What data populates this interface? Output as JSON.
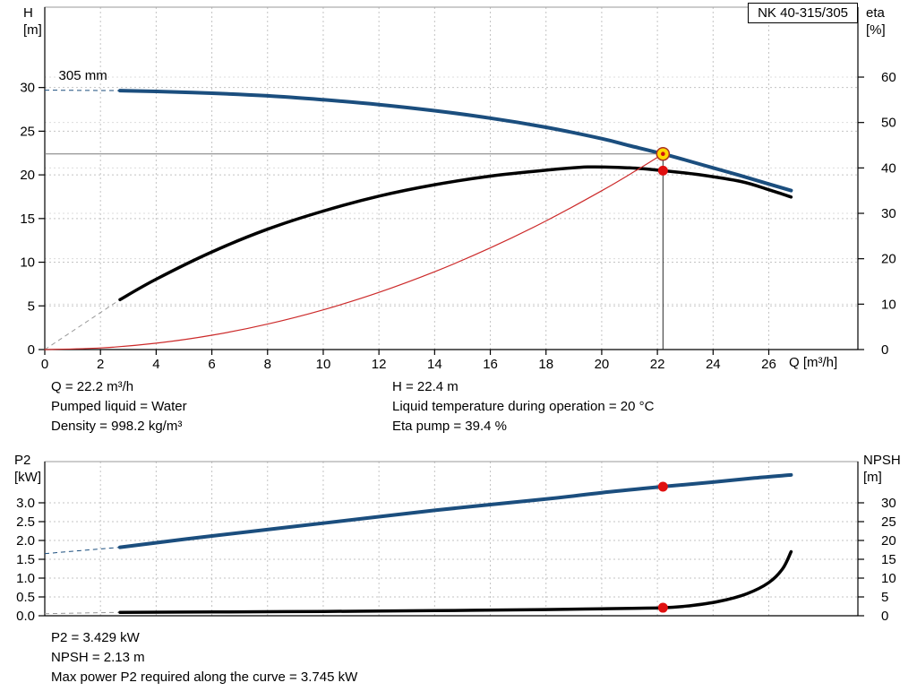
{
  "pump_model": "NK 40-315/305",
  "info_top": {
    "left": [
      "Q = 22.2 m³/h",
      "Pumped liquid = Water",
      "Density = 998.2 kg/m³"
    ],
    "right": [
      "H = 22.4 m",
      "Liquid temperature during operation = 20 °C",
      "Eta pump = 39.4 %"
    ]
  },
  "info_bottom": [
    "P2 = 3.429 kW",
    "NPSH = 2.13 m",
    "Max power P2 required along the curve = 3.745 kW"
  ],
  "chart_data": [
    {
      "type": "line",
      "title": "QH and efficiency curves",
      "xlabel": "Q [m³/h]",
      "yl_title": [
        "H",
        "[m]"
      ],
      "yr_title": [
        "eta",
        "[%]"
      ],
      "xlim": [
        0,
        29.2
      ],
      "ylim_left": [
        0,
        39.2
      ],
      "ylim_right": [
        0,
        75.4
      ],
      "xticks": [
        0,
        2,
        4,
        6,
        8,
        10,
        12,
        14,
        16,
        18,
        20,
        22,
        24,
        26
      ],
      "yticks_left": [
        0,
        5,
        10,
        15,
        20,
        25,
        30
      ],
      "yticks_right": [
        0,
        10,
        20,
        30,
        40,
        50,
        60
      ],
      "grid_right": true,
      "show_xtick_labels": true,
      "series": [
        {
          "name": "head-curve-305mm",
          "axis": "left",
          "color": "#1b4e7e",
          "width": 4,
          "lead_color": "#1b4e7e",
          "dash_lead": [
            [
              0,
              29.7
            ],
            [
              2.7,
              29.65
            ]
          ],
          "points": [
            [
              2.7,
              29.65
            ],
            [
              4,
              29.55
            ],
            [
              6,
              29.35
            ],
            [
              8,
              29.05
            ],
            [
              10,
              28.6
            ],
            [
              12,
              28.05
            ],
            [
              14,
              27.35
            ],
            [
              16,
              26.5
            ],
            [
              18,
              25.45
            ],
            [
              20,
              24.15
            ],
            [
              21,
              23.35
            ],
            [
              22.2,
              22.4
            ],
            [
              23,
              21.7
            ],
            [
              24,
              20.8
            ],
            [
              25,
              19.9
            ],
            [
              26,
              18.95
            ],
            [
              26.8,
              18.2
            ]
          ]
        },
        {
          "name": "efficiency-curve",
          "axis": "right",
          "color": "#000000",
          "width": 3.5,
          "lead_color": "#999999",
          "dash_lead": [
            [
              0,
              0
            ],
            [
              2.7,
              11
            ]
          ],
          "points": [
            [
              2.7,
              11
            ],
            [
              4,
              15.5
            ],
            [
              6,
              21.5
            ],
            [
              8,
              26.5
            ],
            [
              10,
              30.5
            ],
            [
              12,
              33.8
            ],
            [
              14,
              36.3
            ],
            [
              16,
              38.2
            ],
            [
              18,
              39.5
            ],
            [
              19.5,
              40.2
            ],
            [
              21,
              40
            ],
            [
              22.2,
              39.4
            ],
            [
              23.5,
              38.5
            ],
            [
              25,
              37
            ],
            [
              26,
              35.2
            ],
            [
              26.8,
              33.6
            ]
          ]
        },
        {
          "name": "system-curve",
          "axis": "left",
          "color": "#cc2a2a",
          "width": 1.2,
          "points": [
            [
              0,
              0
            ],
            [
              2,
              0.18
            ],
            [
              4,
              0.73
            ],
            [
              6,
              1.64
            ],
            [
              8,
              2.91
            ],
            [
              10,
              4.55
            ],
            [
              12,
              6.55
            ],
            [
              14,
              8.91
            ],
            [
              16,
              11.64
            ],
            [
              18,
              14.73
            ],
            [
              20,
              18.18
            ],
            [
              21.2,
              20.43
            ],
            [
              22.2,
              22.4
            ]
          ]
        }
      ],
      "guides": {
        "v": 22.2,
        "h": 22.4
      },
      "markers": [
        {
          "name": "duty-point-marker",
          "x": 22.2,
          "y": 22.4,
          "axis": "left",
          "style": "duty"
        },
        {
          "name": "eta-duty-marker",
          "x": 22.2,
          "y": 39.4,
          "axis": "right",
          "style": "dot"
        }
      ],
      "annotations": [
        {
          "text": "305 mm",
          "x": 0.5,
          "y": 30.9
        }
      ],
      "duty_point": {
        "Q": 22.2,
        "H": 22.4,
        "eta": 39.4
      }
    },
    {
      "type": "line",
      "title": "P2 and NPSH curves",
      "xlabel": "",
      "yl_title": [
        "P2",
        "[kW]"
      ],
      "yr_title": [
        "NPSH",
        "[m]"
      ],
      "xlim": [
        0,
        29.2
      ],
      "ylim_left": [
        0,
        4.095
      ],
      "ylim_right": [
        0,
        40.95
      ],
      "xticks": [
        0,
        2,
        4,
        6,
        8,
        10,
        12,
        14,
        16,
        18,
        20,
        22,
        24,
        26
      ],
      "yticks_left": [
        0,
        0.5,
        1,
        1.5,
        2,
        2.5,
        3
      ],
      "ytick_labels_left": [
        "0.0",
        "0.5",
        "1.0",
        "1.5",
        "2.0",
        "2.5",
        "3.0"
      ],
      "yticks_right": [
        0,
        5,
        10,
        15,
        20,
        25,
        30
      ],
      "grid_right": false,
      "show_xtick_labels": false,
      "series": [
        {
          "name": "p2-curve",
          "axis": "left",
          "color": "#1b4e7e",
          "width": 4,
          "lead_color": "#1b4e7e",
          "dash_lead": [
            [
              0,
              1.65
            ],
            [
              2.7,
              1.82
            ]
          ],
          "points": [
            [
              2.7,
              1.82
            ],
            [
              6,
              2.12
            ],
            [
              10,
              2.46
            ],
            [
              14,
              2.8
            ],
            [
              18,
              3.1
            ],
            [
              20,
              3.27
            ],
            [
              22.2,
              3.43
            ],
            [
              24,
              3.55
            ],
            [
              25.5,
              3.66
            ],
            [
              26.8,
              3.74
            ]
          ]
        },
        {
          "name": "npsh-curve",
          "axis": "right",
          "color": "#000000",
          "width": 3.5,
          "lead_color": "#999999",
          "dash_lead": [
            [
              0,
              0.55
            ],
            [
              2.7,
              0.9
            ]
          ],
          "points": [
            [
              2.7,
              0.9
            ],
            [
              6,
              1
            ],
            [
              10,
              1.15
            ],
            [
              14,
              1.35
            ],
            [
              18,
              1.65
            ],
            [
              20,
              1.85
            ],
            [
              22.2,
              2.13
            ],
            [
              23.2,
              2.7
            ],
            [
              24.2,
              3.8
            ],
            [
              25.2,
              5.8
            ],
            [
              26,
              8.8
            ],
            [
              26.5,
              12.5
            ],
            [
              26.8,
              17
            ]
          ]
        }
      ],
      "markers": [
        {
          "name": "p2-duty-marker",
          "x": 22.2,
          "y": 3.429,
          "axis": "left",
          "style": "dot"
        },
        {
          "name": "npsh-duty-marker",
          "x": 22.2,
          "y": 2.13,
          "axis": "right",
          "style": "dot"
        }
      ],
      "duty_point": {
        "P2_kW": 3.429,
        "NPSH_m": 2.13,
        "P2_max_kW": 3.745
      }
    }
  ]
}
